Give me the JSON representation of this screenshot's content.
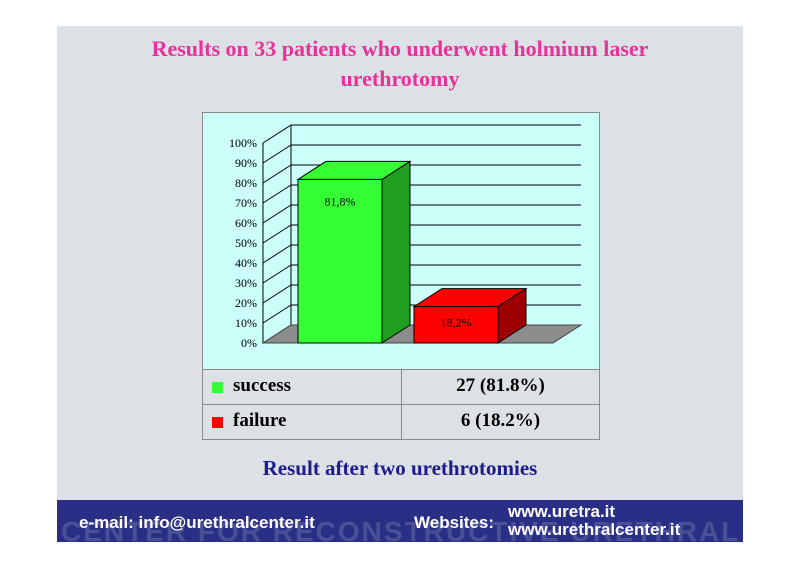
{
  "slide": {
    "title_line1": "Results on 33 patients who underwent holmium laser",
    "title_line2": "urethrotomy",
    "subtitle": "Result after two urethrotomies"
  },
  "chart_data": {
    "type": "bar",
    "categories": [
      "success",
      "failure"
    ],
    "values": [
      81.8,
      18.2
    ],
    "data_labels": [
      "81,8%",
      "18,2%"
    ],
    "ylim": [
      0,
      100
    ],
    "yticks": [
      "0%",
      "10%",
      "20%",
      "30%",
      "40%",
      "50%",
      "60%",
      "70%",
      "80%",
      "90%",
      "100%"
    ],
    "colors": [
      "#33ff33",
      "#ff0000"
    ],
    "grid": true,
    "three_d": true
  },
  "legend_table": {
    "rows": [
      {
        "label": "success",
        "value": "27 (81.8%)",
        "color": "#33ff33"
      },
      {
        "label": "failure",
        "value": "6 (18.2%)",
        "color": "#ff0000"
      }
    ]
  },
  "footer": {
    "email": "e-mail: info@urethralcenter.it",
    "websites_label": "Websites:",
    "site1": "www.uretra.it",
    "site2": "www.urethralcenter.it",
    "watermark": "CENTER FOR RECONSTRUCTIVE URETHRAL SURGERY"
  }
}
